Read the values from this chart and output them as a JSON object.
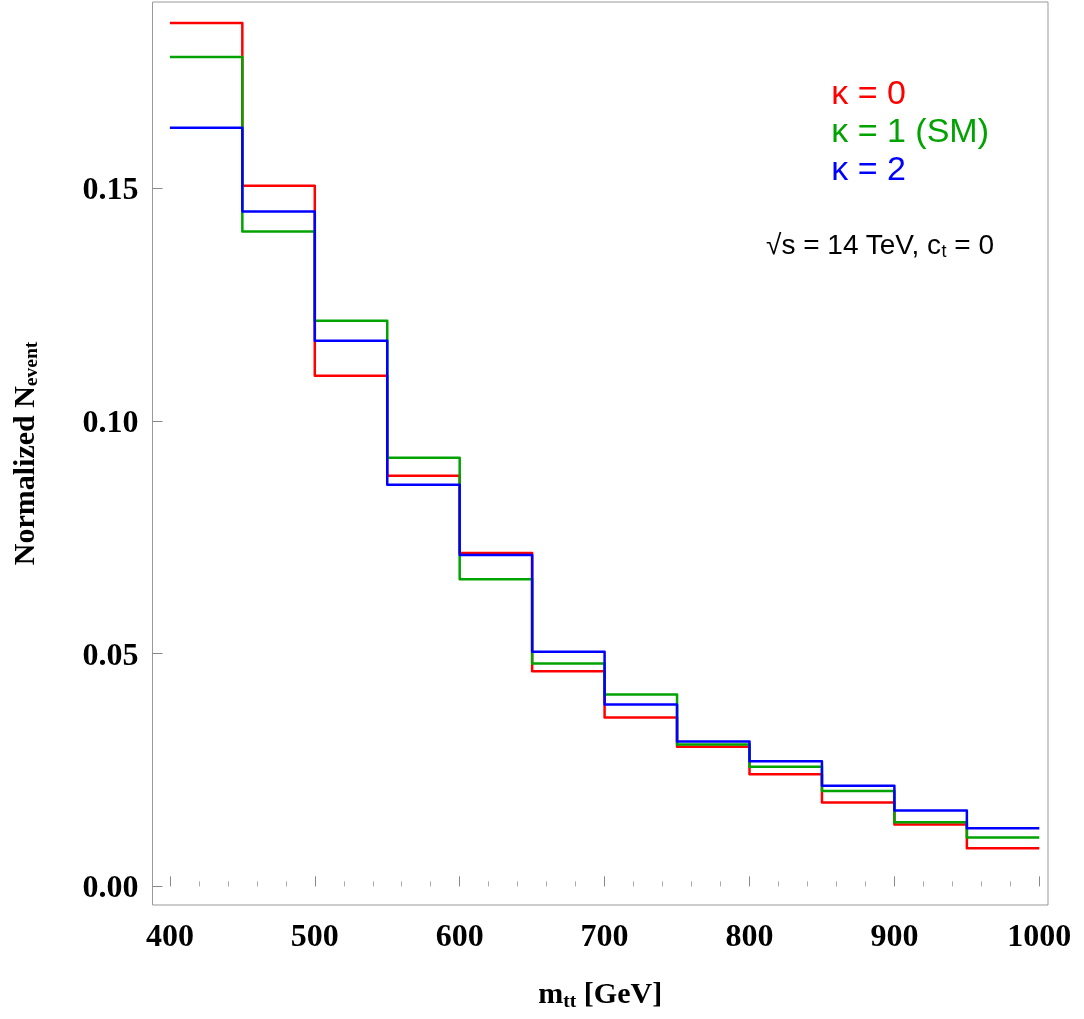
{
  "chart_data": {
    "type": "histogram",
    "xlabel": "m$_{tt}$ [GeV]",
    "ylabel": "Normalized N$_{event}$",
    "annotations": [
      "√s = 14 TeV, c$_{t}$ = 0"
    ],
    "bins": [
      400,
      450,
      500,
      550,
      600,
      650,
      700,
      750,
      800,
      850,
      900,
      950,
      1000
    ],
    "series": [
      {
        "name": "κ = 0",
        "color": "#ff0000",
        "values": [
          0.1855,
          0.1505,
          0.1097,
          0.0882,
          0.0716,
          0.0462,
          0.0363,
          0.03,
          0.0241,
          0.018,
          0.0133,
          0.0082
        ]
      },
      {
        "name": "κ = 1 (SM)",
        "color": "#00a300",
        "values": [
          0.1782,
          0.1407,
          0.1215,
          0.0921,
          0.066,
          0.0479,
          0.0412,
          0.0305,
          0.0257,
          0.0205,
          0.0138,
          0.0105
        ]
      },
      {
        "name": "κ = 2",
        "color": "#0000ff",
        "values": [
          0.163,
          0.145,
          0.1172,
          0.0863,
          0.0712,
          0.0504,
          0.0391,
          0.0311,
          0.0269,
          0.0216,
          0.0163,
          0.0125
        ]
      }
    ],
    "xlim": [
      388,
      1006
    ],
    "ylim": [
      -0.004,
      0.19
    ],
    "xticks": [
      400,
      500,
      600,
      700,
      800,
      900,
      1000
    ],
    "yticks": [
      {
        "value": 0,
        "label": "0.00"
      },
      {
        "value": 0.05,
        "label": "0.05"
      },
      {
        "value": 0.1,
        "label": "0.10"
      },
      {
        "value": 0.15,
        "label": "0.15"
      }
    ],
    "grid": false,
    "legend": "top right"
  }
}
